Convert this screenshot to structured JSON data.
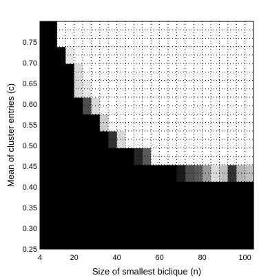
{
  "chart_data": {
    "type": "heatmap",
    "xlabel": "Size of smallest biclique (n)",
    "ylabel": "Mean of cluster entries (c)",
    "xlim": [
      4,
      104
    ],
    "ylim": [
      0.25,
      0.8
    ],
    "x_ticks": [
      {
        "value": 4,
        "label": "4"
      },
      {
        "value": 20,
        "label": "20"
      },
      {
        "value": 40,
        "label": "40"
      },
      {
        "value": 60,
        "label": "60"
      },
      {
        "value": 80,
        "label": "80"
      },
      {
        "value": 100,
        "label": "100"
      }
    ],
    "y_ticks": [
      {
        "value": 0.25,
        "label": "0.25"
      },
      {
        "value": 0.3,
        "label": "0.30"
      },
      {
        "value": 0.35,
        "label": "0.35"
      },
      {
        "value": 0.4,
        "label": "0.40"
      },
      {
        "value": 0.45,
        "label": "0.45"
      },
      {
        "value": 0.5,
        "label": "0.50"
      },
      {
        "value": 0.55,
        "label": "0.55"
      },
      {
        "value": 0.6,
        "label": "0.60"
      },
      {
        "value": 0.65,
        "label": "0.65"
      },
      {
        "value": 0.7,
        "label": "0.70"
      },
      {
        "value": 0.75,
        "label": "0.75"
      }
    ],
    "x_columns": [
      4,
      8,
      12,
      16,
      20,
      24,
      28,
      32,
      36,
      40,
      44,
      48,
      52,
      56,
      60,
      64,
      68,
      72,
      76,
      80,
      84,
      88,
      92,
      96,
      100
    ],
    "y_rows": [
      0.25,
      0.27,
      0.29,
      0.31,
      0.33,
      0.35,
      0.37,
      0.39,
      0.41,
      0.43,
      0.45,
      0.47,
      0.49,
      0.51,
      0.53,
      0.55,
      0.57,
      0.59,
      0.61,
      0.63,
      0.65,
      0.67,
      0.69,
      0.71,
      0.73,
      0.75,
      0.77
    ],
    "value_range": [
      0,
      1
    ],
    "colormap": "gray",
    "grid": "dotted",
    "values": [
      [
        0,
        0,
        0,
        0,
        0,
        0,
        0,
        0,
        0,
        0,
        0,
        0,
        0,
        0,
        0,
        0,
        0,
        0,
        0,
        0,
        0,
        0,
        0,
        0,
        0
      ],
      [
        0,
        0,
        0,
        0,
        0,
        0,
        0,
        0,
        0,
        0,
        0,
        0,
        0,
        0,
        0,
        0,
        0,
        0,
        0,
        0,
        0,
        0,
        0,
        0,
        0
      ],
      [
        0,
        0,
        0,
        0,
        0,
        0,
        0,
        0,
        0,
        0,
        0,
        0,
        0,
        0,
        0,
        0,
        0,
        0,
        0,
        0,
        0,
        0,
        0,
        0,
        0
      ],
      [
        0,
        0,
        0,
        0,
        0,
        0,
        0,
        0,
        0,
        0,
        0,
        0,
        0,
        0,
        0,
        0,
        0,
        0,
        0,
        0,
        0,
        0,
        0,
        0,
        0
      ],
      [
        0,
        0,
        0,
        0,
        0,
        0,
        0,
        0,
        0,
        0,
        0,
        0,
        0,
        0,
        0,
        0,
        0,
        0,
        0,
        0,
        0,
        0,
        0,
        0,
        0
      ],
      [
        0,
        0,
        0,
        0,
        0,
        0,
        0,
        0,
        0,
        0,
        0,
        0,
        0,
        0,
        0,
        0,
        0,
        0,
        0,
        0,
        0,
        0,
        0,
        0,
        0
      ],
      [
        0,
        0,
        0,
        0,
        0,
        0,
        0,
        0,
        0,
        0,
        0,
        0,
        0,
        0,
        0,
        0,
        0,
        0,
        0,
        0,
        0,
        0,
        0,
        0,
        0
      ],
      [
        0,
        0,
        0,
        0,
        0,
        0,
        0,
        0,
        0,
        0,
        0,
        0,
        0,
        0,
        0,
        0,
        0,
        0,
        0,
        0,
        0,
        0,
        0,
        0,
        0
      ],
      [
        0,
        0,
        0,
        0,
        0,
        0,
        0,
        0,
        0,
        0,
        0,
        0,
        0,
        0,
        0,
        0,
        0.1,
        0.3,
        0.35,
        0.6,
        0.85,
        0.75,
        0.2,
        0.7,
        0.75
      ],
      [
        0,
        0,
        0,
        0,
        0,
        0,
        0,
        0,
        0,
        0,
        0,
        0,
        0,
        0,
        0,
        0,
        0.1,
        0.3,
        0.35,
        0.6,
        0.85,
        0.75,
        0.2,
        0.7,
        0.75
      ],
      [
        0,
        0,
        0,
        0,
        0,
        0,
        0,
        0,
        0,
        0,
        0,
        0.15,
        0.35,
        1,
        1,
        1,
        1,
        1,
        1,
        1,
        1,
        1,
        1,
        1,
        1
      ],
      [
        0,
        0,
        0,
        0,
        0,
        0,
        0,
        0,
        0,
        0,
        0,
        0.15,
        0.35,
        1,
        1,
        1,
        1,
        1,
        1,
        1,
        1,
        1,
        1,
        1,
        1
      ],
      [
        0,
        0,
        0,
        0,
        0,
        0,
        0,
        0,
        0.2,
        0.85,
        1,
        1,
        1,
        1,
        1,
        1,
        1,
        1,
        1,
        1,
        1,
        1,
        1,
        1,
        1
      ],
      [
        0,
        0,
        0,
        0,
        0,
        0,
        0,
        0,
        0.2,
        0.85,
        1,
        1,
        1,
        1,
        1,
        1,
        1,
        1,
        1,
        1,
        1,
        1,
        1,
        1,
        1
      ],
      [
        0,
        0,
        0,
        0,
        0,
        0,
        0,
        0.8,
        1,
        1,
        1,
        1,
        1,
        1,
        1,
        1,
        1,
        1,
        1,
        1,
        1,
        1,
        1,
        1,
        1
      ],
      [
        0,
        0,
        0,
        0,
        0,
        0,
        0,
        0.8,
        1,
        1,
        1,
        1,
        1,
        1,
        1,
        1,
        1,
        1,
        1,
        1,
        1,
        1,
        1,
        1,
        1
      ],
      [
        0,
        0,
        0,
        0,
        0,
        0.3,
        0.85,
        1,
        1,
        1,
        1,
        1,
        1,
        1,
        1,
        1,
        1,
        1,
        1,
        1,
        1,
        1,
        1,
        1,
        1
      ],
      [
        0,
        0,
        0,
        0,
        0,
        0.3,
        0.85,
        1,
        1,
        1,
        1,
        1,
        1,
        1,
        1,
        1,
        1,
        1,
        1,
        1,
        1,
        1,
        1,
        1,
        1
      ],
      [
        0,
        0,
        0,
        0,
        0.85,
        0.9,
        1,
        1,
        1,
        1,
        1,
        1,
        1,
        1,
        1,
        1,
        1,
        1,
        1,
        1,
        1,
        1,
        1,
        1,
        1
      ],
      [
        0,
        0,
        0,
        0,
        0.85,
        0.9,
        1,
        1,
        1,
        1,
        1,
        1,
        1,
        1,
        1,
        1,
        1,
        1,
        1,
        1,
        1,
        1,
        1,
        1,
        1
      ],
      [
        0,
        0,
        0,
        0,
        0.85,
        1,
        1,
        1,
        1,
        1,
        1,
        1,
        1,
        1,
        1,
        1,
        1,
        1,
        1,
        1,
        1,
        1,
        1,
        1,
        1
      ],
      [
        0,
        0,
        0,
        0,
        0.85,
        1,
        1,
        1,
        1,
        1,
        1,
        1,
        1,
        1,
        1,
        1,
        1,
        1,
        1,
        1,
        1,
        1,
        1,
        1,
        1
      ],
      [
        0,
        0,
        0,
        0.9,
        1,
        1,
        1,
        1,
        1,
        1,
        1,
        1,
        1,
        1,
        1,
        1,
        1,
        1,
        1,
        1,
        1,
        1,
        1,
        1,
        1
      ],
      [
        0,
        0,
        0,
        0.9,
        1,
        1,
        1,
        1,
        1,
        1,
        1,
        1,
        1,
        1,
        1,
        1,
        1,
        1,
        1,
        1,
        1,
        1,
        1,
        1,
        1
      ],
      [
        0,
        0,
        1,
        1,
        1,
        1,
        1,
        1,
        1,
        1,
        1,
        1,
        1,
        1,
        1,
        1,
        1,
        1,
        1,
        1,
        1,
        1,
        1,
        1,
        1
      ],
      [
        0,
        0,
        1,
        1,
        1,
        1,
        1,
        1,
        1,
        1,
        1,
        1,
        1,
        1,
        1,
        1,
        1,
        1,
        1,
        1,
        1,
        1,
        1,
        1,
        1
      ],
      [
        0,
        0,
        1,
        1,
        1,
        1,
        1,
        1,
        1,
        1,
        1,
        1,
        1,
        1,
        1,
        1,
        1,
        1,
        1,
        1,
        1,
        1,
        1,
        1,
        1
      ]
    ]
  }
}
